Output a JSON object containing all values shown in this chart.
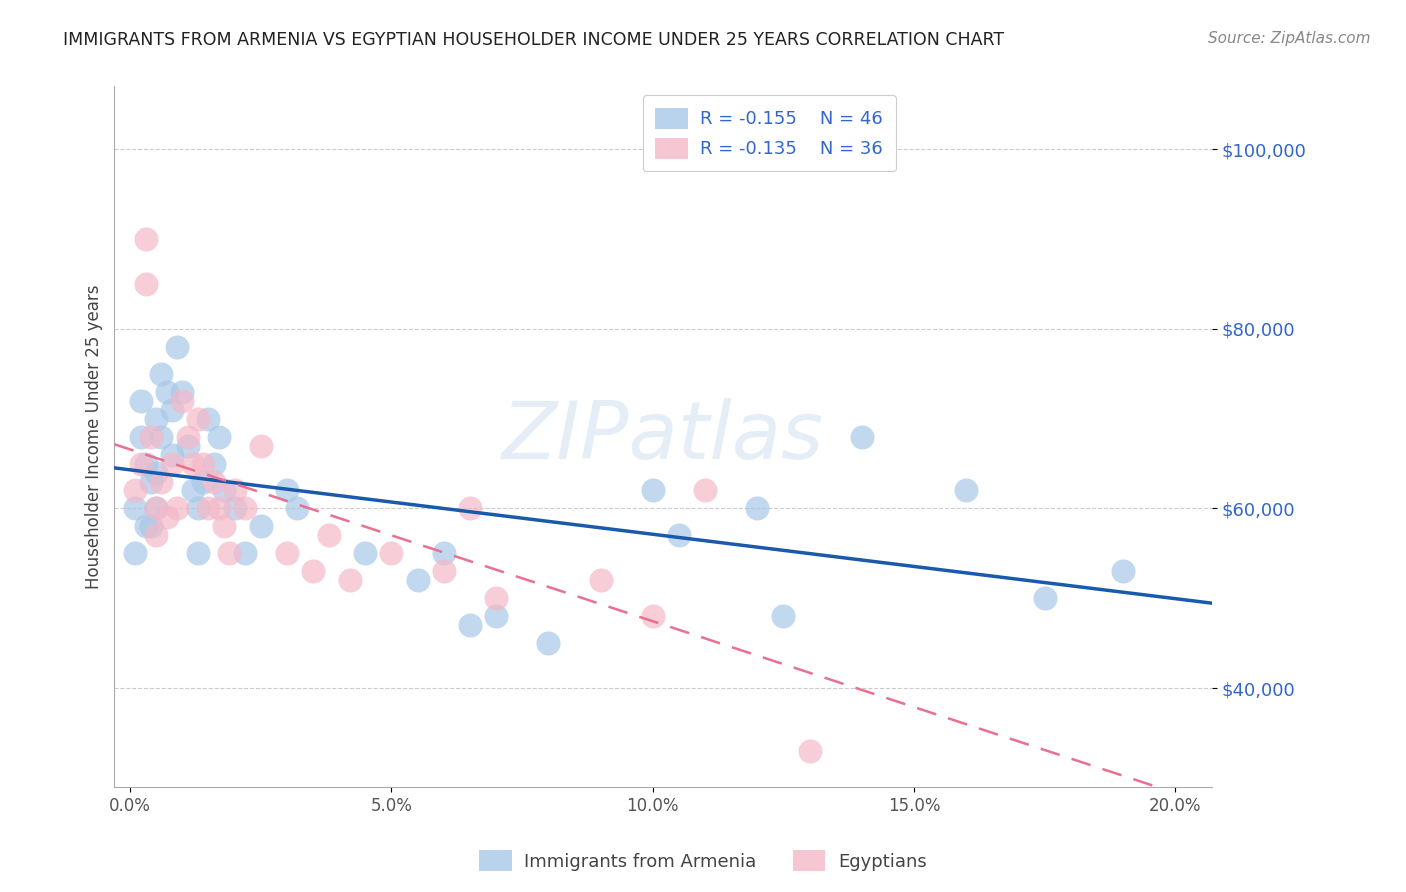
{
  "title": "IMMIGRANTS FROM ARMENIA VS EGYPTIAN HOUSEHOLDER INCOME UNDER 25 YEARS CORRELATION CHART",
  "source": "Source: ZipAtlas.com",
  "ylabel": "Householder Income Under 25 years",
  "xlabel_ticks": [
    "0.0%",
    "5.0%",
    "10.0%",
    "15.0%",
    "20.0%"
  ],
  "xlabel_vals": [
    0.0,
    0.05,
    0.1,
    0.15,
    0.2
  ],
  "ylabel_vals": [
    40000,
    60000,
    80000,
    100000
  ],
  "xlim": [
    -0.003,
    0.207
  ],
  "ylim": [
    29000,
    107000
  ],
  "watermark": "ZIPatlas",
  "armenia_color": "#a8c8e8",
  "egypt_color": "#f4b8c8",
  "armenia_line_color": "#1a5aaa",
  "egypt_line_color": "#e87090",
  "legend_R_armenia": "R = -0.155",
  "legend_N_armenia": "N = 46",
  "legend_R_egypt": "R = -0.135",
  "legend_N_egypt": "N = 36",
  "armenia_x": [
    0.001,
    0.001,
    0.002,
    0.002,
    0.003,
    0.003,
    0.004,
    0.004,
    0.005,
    0.005,
    0.005,
    0.006,
    0.006,
    0.007,
    0.008,
    0.008,
    0.009,
    0.01,
    0.011,
    0.012,
    0.013,
    0.013,
    0.014,
    0.015,
    0.016,
    0.017,
    0.018,
    0.02,
    0.022,
    0.025,
    0.03,
    0.032,
    0.045,
    0.055,
    0.06,
    0.065,
    0.07,
    0.08,
    0.1,
    0.105,
    0.12,
    0.125,
    0.14,
    0.16,
    0.175,
    0.19
  ],
  "armenia_y": [
    60000,
    55000,
    68000,
    72000,
    65000,
    58000,
    63000,
    58000,
    70000,
    64000,
    60000,
    75000,
    68000,
    73000,
    71000,
    66000,
    78000,
    73000,
    67000,
    62000,
    60000,
    55000,
    63000,
    70000,
    65000,
    68000,
    62000,
    60000,
    55000,
    58000,
    62000,
    60000,
    55000,
    52000,
    55000,
    47000,
    48000,
    45000,
    62000,
    57000,
    60000,
    48000,
    68000,
    62000,
    50000,
    53000
  ],
  "egypt_x": [
    0.001,
    0.002,
    0.003,
    0.003,
    0.004,
    0.005,
    0.005,
    0.006,
    0.007,
    0.008,
    0.009,
    0.01,
    0.011,
    0.012,
    0.013,
    0.014,
    0.015,
    0.016,
    0.017,
    0.018,
    0.019,
    0.02,
    0.022,
    0.025,
    0.03,
    0.035,
    0.038,
    0.042,
    0.05,
    0.06,
    0.065,
    0.07,
    0.09,
    0.1,
    0.11,
    0.13
  ],
  "egypt_y": [
    62000,
    65000,
    90000,
    85000,
    68000,
    60000,
    57000,
    63000,
    59000,
    65000,
    60000,
    72000,
    68000,
    65000,
    70000,
    65000,
    60000,
    63000,
    60000,
    58000,
    55000,
    62000,
    60000,
    67000,
    55000,
    53000,
    57000,
    52000,
    55000,
    53000,
    60000,
    50000,
    52000,
    48000,
    62000,
    33000
  ],
  "background_color": "#ffffff",
  "grid_color": "#cccccc"
}
